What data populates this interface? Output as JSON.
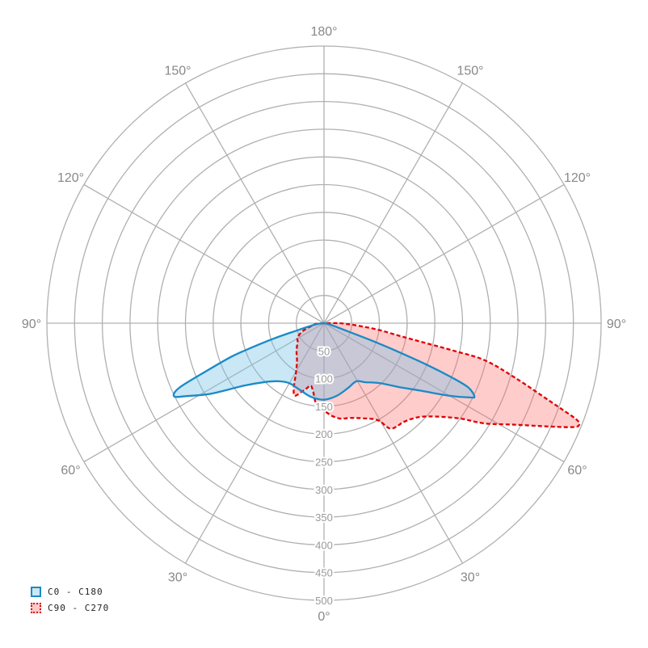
{
  "chart_data": {
    "type": "polar",
    "title": "",
    "radial_axis": {
      "min": 0,
      "max": 500,
      "ticks": [
        50,
        100,
        150,
        200,
        250,
        300,
        350,
        400,
        450,
        500
      ]
    },
    "angle_labels_right": [
      "0°",
      "30°",
      "60°",
      "90°",
      "120°",
      "150°",
      "180°"
    ],
    "angle_labels_left": [
      "0°",
      "30°",
      "60°",
      "90°",
      "120°",
      "150°"
    ],
    "angle_ticks": [
      0,
      30,
      60,
      90,
      120,
      150,
      180
    ],
    "legend_placement": "bottom-left",
    "series": [
      {
        "name": "C0 - C180",
        "color": "#1a8ac6",
        "fill": "rgba(120,195,230,0.4)",
        "dash": false,
        "left": [
          [
            0,
            138
          ],
          [
            10,
            135
          ],
          [
            20,
            128
          ],
          [
            30,
            125
          ],
          [
            38,
            133
          ],
          [
            45,
            150
          ],
          [
            52,
            183
          ],
          [
            58,
            240
          ],
          [
            62,
            280
          ],
          [
            64,
            301
          ],
          [
            66,
            285
          ],
          [
            68,
            225
          ],
          [
            70,
            180
          ],
          [
            71,
            150
          ],
          [
            73,
            95
          ],
          [
            75,
            50
          ],
          [
            80,
            20
          ],
          [
            85,
            8
          ],
          [
            90,
            0
          ]
        ],
        "right": [
          [
            0,
            138
          ],
          [
            10,
            133
          ],
          [
            20,
            125
          ],
          [
            29,
            120
          ],
          [
            35,
            130
          ],
          [
            43,
            148
          ],
          [
            50,
            180
          ],
          [
            55,
            212
          ],
          [
            60,
            262
          ],
          [
            63,
            295
          ],
          [
            64,
            302
          ],
          [
            66,
            285
          ],
          [
            67,
            250
          ],
          [
            68,
            200
          ],
          [
            69,
            140
          ],
          [
            70,
            90
          ],
          [
            71,
            50
          ],
          [
            73,
            25
          ],
          [
            80,
            8
          ],
          [
            90,
            0
          ]
        ]
      },
      {
        "name": "C90 - C270",
        "color": "#e00000",
        "fill": "rgba(255,110,110,0.35)",
        "dash": true,
        "left": [
          [
            0,
            158
          ],
          [
            5,
            150
          ],
          [
            9,
            125
          ],
          [
            12,
            115
          ],
          [
            15,
            122
          ],
          [
            18,
            130
          ],
          [
            22,
            141
          ],
          [
            25,
            129
          ],
          [
            29,
            105
          ],
          [
            35,
            85
          ],
          [
            45,
            70
          ],
          [
            55,
            58
          ],
          [
            62,
            54
          ],
          [
            70,
            40
          ],
          [
            80,
            20
          ],
          [
            85,
            14
          ],
          [
            90,
            0
          ]
        ],
        "right": [
          [
            0,
            158
          ],
          [
            5,
            168
          ],
          [
            10,
            175
          ],
          [
            15,
            177
          ],
          [
            22,
            185
          ],
          [
            29,
            200
          ],
          [
            32,
            224
          ],
          [
            36,
            228
          ],
          [
            39,
            229
          ],
          [
            45,
            240
          ],
          [
            50,
            262
          ],
          [
            55,
            300
          ],
          [
            58,
            341
          ],
          [
            62,
            390
          ],
          [
            65,
            440
          ],
          [
            67,
            480
          ],
          [
            68,
            495
          ],
          [
            69,
            490
          ],
          [
            70,
            460
          ],
          [
            71,
            430
          ],
          [
            74,
            360
          ],
          [
            77,
            298
          ],
          [
            78,
            240
          ],
          [
            80,
            150
          ],
          [
            83,
            100
          ],
          [
            86,
            60
          ],
          [
            88,
            40
          ],
          [
            90,
            28
          ]
        ]
      }
    ]
  }
}
